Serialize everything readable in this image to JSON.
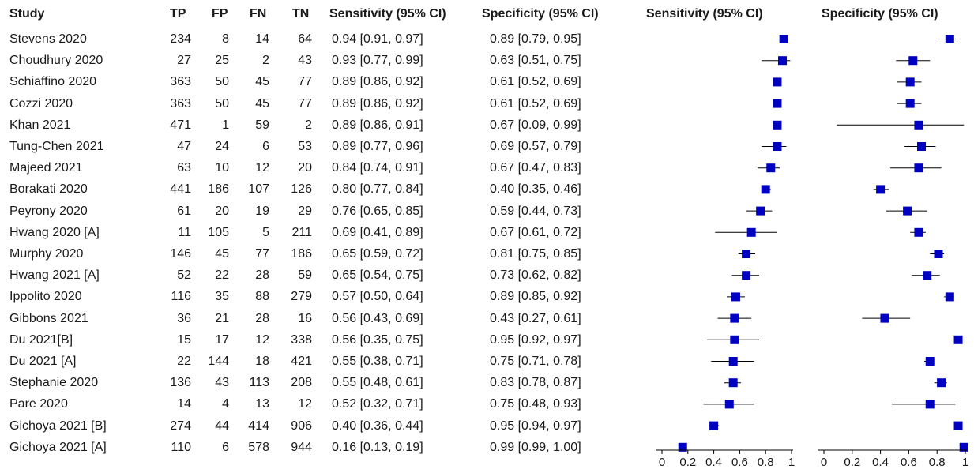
{
  "headers": {
    "study": "Study",
    "tp": "TP",
    "fp": "FP",
    "fn": "FN",
    "tn": "TN",
    "sens": "Sensitivity (95% CI)",
    "spec": "Specificity (95% CI)",
    "sens_plot": "Sensitivity (95% CI)",
    "spec_plot": "Specificity (95% CI)"
  },
  "rows": [
    {
      "study": "Stevens 2020",
      "tp": "234",
      "fp": "8",
      "fn": "14",
      "tn": "64",
      "sens": "0.94 [0.91, 0.97]",
      "spec": "0.89 [0.79, 0.95]"
    },
    {
      "study": "Choudhury 2020",
      "tp": "27",
      "fp": "25",
      "fn": "2",
      "tn": "43",
      "sens": "0.93 [0.77, 0.99]",
      "spec": "0.63 [0.51, 0.75]"
    },
    {
      "study": "Schiaffino 2020",
      "tp": "363",
      "fp": "50",
      "fn": "45",
      "tn": "77",
      "sens": "0.89 [0.86, 0.92]",
      "spec": "0.61 [0.52, 0.69]"
    },
    {
      "study": "Cozzi 2020",
      "tp": "363",
      "fp": "50",
      "fn": "45",
      "tn": "77",
      "sens": "0.89 [0.86, 0.92]",
      "spec": "0.61 [0.52, 0.69]"
    },
    {
      "study": "Khan 2021",
      "tp": "471",
      "fp": "1",
      "fn": "59",
      "tn": "2",
      "sens": "0.89 [0.86, 0.91]",
      "spec": "0.67 [0.09, 0.99]"
    },
    {
      "study": "Tung-Chen 2021",
      "tp": "47",
      "fp": "24",
      "fn": "6",
      "tn": "53",
      "sens": "0.89 [0.77, 0.96]",
      "spec": "0.69 [0.57, 0.79]"
    },
    {
      "study": "Majeed 2021",
      "tp": "63",
      "fp": "10",
      "fn": "12",
      "tn": "20",
      "sens": "0.84 [0.74, 0.91]",
      "spec": "0.67 [0.47, 0.83]"
    },
    {
      "study": "Borakati 2020",
      "tp": "441",
      "fp": "186",
      "fn": "107",
      "tn": "126",
      "sens": "0.80 [0.77, 0.84]",
      "spec": "0.40 [0.35, 0.46]"
    },
    {
      "study": "Peyrony 2020",
      "tp": "61",
      "fp": "20",
      "fn": "19",
      "tn": "29",
      "sens": "0.76 [0.65, 0.85]",
      "spec": "0.59 [0.44, 0.73]"
    },
    {
      "study": "Hwang 2020 [A]",
      "tp": "11",
      "fp": "105",
      "fn": "5",
      "tn": "211",
      "sens": "0.69 [0.41, 0.89]",
      "spec": "0.67 [0.61, 0.72]"
    },
    {
      "study": "Murphy 2020",
      "tp": "146",
      "fp": "45",
      "fn": "77",
      "tn": "186",
      "sens": "0.65 [0.59, 0.72]",
      "spec": "0.81 [0.75, 0.85]"
    },
    {
      "study": "Hwang 2021 [A]",
      "tp": "52",
      "fp": "22",
      "fn": "28",
      "tn": "59",
      "sens": "0.65 [0.54, 0.75]",
      "spec": "0.73 [0.62, 0.82]"
    },
    {
      "study": "Ippolito 2020",
      "tp": "116",
      "fp": "35",
      "fn": "88",
      "tn": "279",
      "sens": "0.57 [0.50, 0.64]",
      "spec": "0.89 [0.85, 0.92]"
    },
    {
      "study": "Gibbons 2021",
      "tp": "36",
      "fp": "21",
      "fn": "28",
      "tn": "16",
      "sens": "0.56 [0.43, 0.69]",
      "spec": "0.43 [0.27, 0.61]"
    },
    {
      "study": "Du 2021[B]",
      "tp": "15",
      "fp": "17",
      "fn": "12",
      "tn": "338",
      "sens": "0.56 [0.35, 0.75]",
      "spec": "0.95 [0.92, 0.97]"
    },
    {
      "study": "Du 2021 [A]",
      "tp": "22",
      "fp": "144",
      "fn": "18",
      "tn": "421",
      "sens": "0.55 [0.38, 0.71]",
      "spec": "0.75 [0.71, 0.78]"
    },
    {
      "study": "Stephanie 2020",
      "tp": "136",
      "fp": "43",
      "fn": "113",
      "tn": "208",
      "sens": "0.55 [0.48, 0.61]",
      "spec": "0.83 [0.78, 0.87]"
    },
    {
      "study": "Pare 2020",
      "tp": "14",
      "fp": "4",
      "fn": "13",
      "tn": "12",
      "sens": "0.52 [0.32, 0.71]",
      "spec": "0.75 [0.48, 0.93]"
    },
    {
      "study": "Gichoya 2021 [B]",
      "tp": "274",
      "fp": "44",
      "fn": "414",
      "tn": "906",
      "sens": "0.40 [0.36, 0.44]",
      "spec": "0.95 [0.94, 0.97]"
    },
    {
      "study": "Gichoya 2021 [A]",
      "tp": "110",
      "fp": "6",
      "fn": "578",
      "tn": "944",
      "sens": "0.16 [0.13, 0.19]",
      "spec": "0.99 [0.99, 1.00]"
    }
  ],
  "chart_data": [
    {
      "type": "scatter",
      "title": "Sensitivity (95% CI)",
      "xlim": [
        0,
        1
      ],
      "ticks": [
        "0",
        "0.2",
        "0.4",
        "0.6",
        "0.8",
        "1"
      ],
      "marker_color": "#0000c0",
      "categories": [
        "Stevens 2020",
        "Choudhury 2020",
        "Schiaffino 2020",
        "Cozzi 2020",
        "Khan 2021",
        "Tung-Chen 2021",
        "Majeed 2021",
        "Borakati 2020",
        "Peyrony 2020",
        "Hwang 2020 [A]",
        "Murphy 2020",
        "Hwang 2021 [A]",
        "Ippolito 2020",
        "Gibbons 2021",
        "Du 2021[B]",
        "Du 2021 [A]",
        "Stephanie 2020",
        "Pare 2020",
        "Gichoya 2021 [B]",
        "Gichoya 2021 [A]"
      ],
      "values": [
        0.94,
        0.93,
        0.89,
        0.89,
        0.89,
        0.89,
        0.84,
        0.8,
        0.76,
        0.69,
        0.65,
        0.65,
        0.57,
        0.56,
        0.56,
        0.55,
        0.55,
        0.52,
        0.4,
        0.16
      ],
      "lower": [
        0.91,
        0.77,
        0.86,
        0.86,
        0.86,
        0.77,
        0.74,
        0.77,
        0.65,
        0.41,
        0.59,
        0.54,
        0.5,
        0.43,
        0.35,
        0.38,
        0.48,
        0.32,
        0.36,
        0.13
      ],
      "upper": [
        0.97,
        0.99,
        0.92,
        0.92,
        0.91,
        0.96,
        0.91,
        0.84,
        0.85,
        0.89,
        0.72,
        0.75,
        0.64,
        0.69,
        0.75,
        0.71,
        0.61,
        0.71,
        0.44,
        0.19
      ]
    },
    {
      "type": "scatter",
      "title": "Specificity (95% CI)",
      "xlim": [
        0,
        1
      ],
      "ticks": [
        "0",
        "0.2",
        "0.4",
        "0.6",
        "0.8",
        "1"
      ],
      "marker_color": "#0000c0",
      "categories": [
        "Stevens 2020",
        "Choudhury 2020",
        "Schiaffino 2020",
        "Cozzi 2020",
        "Khan 2021",
        "Tung-Chen 2021",
        "Majeed 2021",
        "Borakati 2020",
        "Peyrony 2020",
        "Hwang 2020 [A]",
        "Murphy 2020",
        "Hwang 2021 [A]",
        "Ippolito 2020",
        "Gibbons 2021",
        "Du 2021[B]",
        "Du 2021 [A]",
        "Stephanie 2020",
        "Pare 2020",
        "Gichoya 2021 [B]",
        "Gichoya 2021 [A]"
      ],
      "values": [
        0.89,
        0.63,
        0.61,
        0.61,
        0.67,
        0.69,
        0.67,
        0.4,
        0.59,
        0.67,
        0.81,
        0.73,
        0.89,
        0.43,
        0.95,
        0.75,
        0.83,
        0.75,
        0.95,
        0.99
      ],
      "lower": [
        0.79,
        0.51,
        0.52,
        0.52,
        0.09,
        0.57,
        0.47,
        0.35,
        0.44,
        0.61,
        0.75,
        0.62,
        0.85,
        0.27,
        0.92,
        0.71,
        0.78,
        0.48,
        0.94,
        0.99
      ],
      "upper": [
        0.95,
        0.75,
        0.69,
        0.69,
        0.99,
        0.79,
        0.83,
        0.46,
        0.73,
        0.72,
        0.85,
        0.82,
        0.92,
        0.61,
        0.97,
        0.78,
        0.87,
        0.93,
        0.97,
        1.0
      ]
    }
  ]
}
